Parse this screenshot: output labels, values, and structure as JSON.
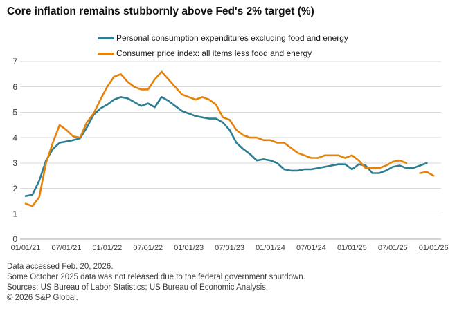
{
  "title": "Core inflation remains stubbornly above Fed's 2% target (%)",
  "chart_data": {
    "type": "line",
    "title": "Core inflation remains stubbornly above Fed's 2% target (%)",
    "x_start_month": "01/2021",
    "x_frequency": "monthly",
    "x_tick_labels": [
      "01/01/21",
      "07/01/21",
      "01/01/22",
      "07/01/22",
      "01/01/23",
      "07/01/23",
      "01/01/24",
      "07/01/24",
      "01/01/25",
      "07/01/25",
      "01/01/26"
    ],
    "x_tick_every_n_months": 6,
    "y_ticks": [
      0,
      1,
      2,
      3,
      4,
      5,
      6,
      7
    ],
    "ylim": [
      0,
      7
    ],
    "grid": "horizontal",
    "legend_position": "top-center",
    "missing_data_note": "CPI value for 10/2025 not released (null creates line gap)",
    "series": [
      {
        "name": "Personal consumption expenditures excluding food and energy",
        "color": "#2D7E93",
        "values": [
          1.7,
          1.75,
          2.3,
          3.1,
          3.55,
          3.8,
          3.85,
          3.9,
          3.97,
          4.4,
          4.9,
          5.15,
          5.3,
          5.5,
          5.6,
          5.55,
          5.4,
          5.25,
          5.35,
          5.2,
          5.6,
          5.45,
          5.25,
          5.05,
          4.95,
          4.85,
          4.8,
          4.75,
          4.75,
          4.6,
          4.3,
          3.8,
          3.55,
          3.35,
          3.1,
          3.15,
          3.1,
          3.0,
          2.75,
          2.7,
          2.7,
          2.75,
          2.75,
          2.8,
          2.85,
          2.9,
          2.95,
          2.95,
          2.75,
          2.95,
          2.9,
          2.6,
          2.6,
          2.7,
          2.85,
          2.9,
          2.8,
          2.8,
          2.9,
          3.0
        ]
      },
      {
        "name": "Consumer price index: all items less food and energy",
        "color": "#E5820A",
        "values": [
          1.4,
          1.3,
          1.65,
          3.0,
          3.8,
          4.5,
          4.3,
          4.05,
          4.0,
          4.6,
          4.95,
          5.5,
          6.0,
          6.4,
          6.5,
          6.2,
          6.0,
          5.9,
          5.9,
          6.3,
          6.6,
          6.3,
          6.0,
          5.7,
          5.6,
          5.5,
          5.6,
          5.5,
          5.3,
          4.8,
          4.7,
          4.3,
          4.1,
          4.0,
          4.0,
          3.9,
          3.9,
          3.8,
          3.8,
          3.6,
          3.4,
          3.3,
          3.2,
          3.2,
          3.3,
          3.3,
          3.3,
          3.2,
          3.3,
          3.1,
          2.8,
          2.8,
          2.8,
          2.9,
          3.05,
          3.1,
          3.0,
          null,
          2.6,
          2.65,
          2.5
        ]
      }
    ]
  },
  "footer": {
    "lines": [
      "Data accessed Feb. 20, 2026.",
      "Some October 2025 data was not released due to the federal government shutdown.",
      "Sources: US Bureau of Labor Statistics; US Bureau of Economic Analysis.",
      "© 2026 S&P Global."
    ]
  }
}
